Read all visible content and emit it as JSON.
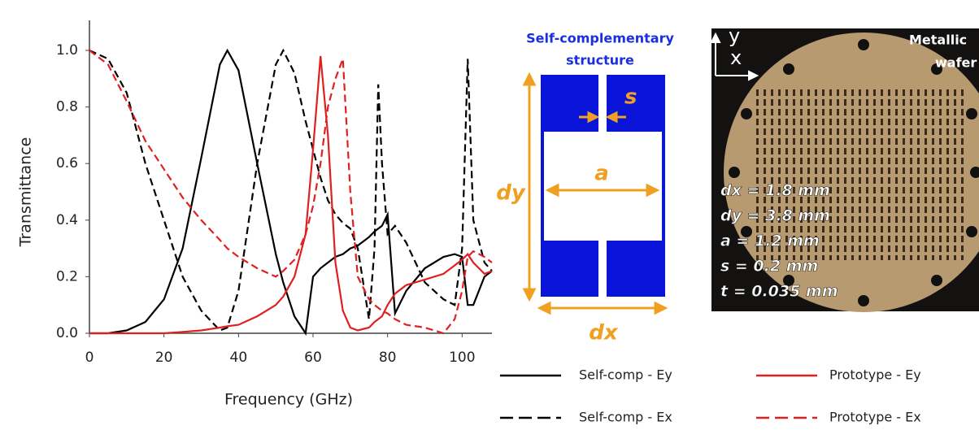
{
  "chart_data": {
    "type": "line",
    "xlabel": "Frequency (GHz)",
    "ylabel": "Transmittance",
    "x": [
      0,
      5,
      10,
      15,
      20,
      25,
      30,
      35,
      37,
      40,
      45,
      50,
      52,
      55,
      58,
      60,
      62,
      64,
      66,
      68,
      70,
      72,
      75,
      76.5,
      77.5,
      78.5,
      80,
      82,
      85,
      90,
      95,
      98,
      100,
      101.5,
      103,
      106,
      108
    ],
    "series": [
      {
        "name": "Self-comp - Ey",
        "color": "#000000",
        "dash": false,
        "values": [
          0,
          0,
          0.01,
          0.04,
          0.12,
          0.3,
          0.62,
          0.95,
          1.0,
          0.93,
          0.6,
          0.28,
          0.18,
          0.06,
          0.0,
          0.2,
          0.23,
          0.25,
          0.27,
          0.28,
          0.3,
          0.31,
          0.34,
          0.36,
          0.37,
          0.38,
          0.42,
          0.07,
          0.15,
          0.23,
          0.27,
          0.28,
          0.27,
          0.1,
          0.1,
          0.2,
          0.22
        ]
      },
      {
        "name": "Self-comp - Ex",
        "color": "#000000",
        "dash": true,
        "values": [
          1.0,
          0.97,
          0.85,
          0.6,
          0.4,
          0.2,
          0.08,
          0.01,
          0.02,
          0.15,
          0.6,
          0.95,
          1.0,
          0.92,
          0.75,
          0.65,
          0.55,
          0.47,
          0.42,
          0.39,
          0.37,
          0.3,
          0.05,
          0.3,
          0.88,
          0.6,
          0.35,
          0.38,
          0.32,
          0.18,
          0.12,
          0.1,
          0.3,
          0.97,
          0.4,
          0.25,
          0.22
        ]
      },
      {
        "name": "Prototype - Ey",
        "color": "#e02020",
        "dash": false,
        "values": [
          0,
          0,
          0,
          0,
          0,
          0.005,
          0.01,
          0.02,
          0.025,
          0.03,
          0.06,
          0.1,
          0.13,
          0.2,
          0.35,
          0.65,
          0.98,
          0.7,
          0.25,
          0.08,
          0.02,
          0.01,
          0.02,
          0.04,
          0.05,
          0.06,
          0.1,
          0.14,
          0.17,
          0.19,
          0.21,
          0.24,
          0.26,
          0.28,
          0.25,
          0.21,
          0.22
        ]
      },
      {
        "name": "Prototype - Ex",
        "color": "#e02020",
        "dash": true,
        "values": [
          1.0,
          0.95,
          0.82,
          0.68,
          0.58,
          0.48,
          0.4,
          0.33,
          0.3,
          0.27,
          0.23,
          0.2,
          0.22,
          0.26,
          0.35,
          0.45,
          0.6,
          0.8,
          0.9,
          0.97,
          0.5,
          0.2,
          0.12,
          0.1,
          0.09,
          0.08,
          0.07,
          0.05,
          0.03,
          0.02,
          0.0,
          0.05,
          0.15,
          0.27,
          0.29,
          0.27,
          0.25
        ]
      }
    ],
    "xlim": [
      0,
      108
    ],
    "xticks": [
      0,
      20,
      40,
      60,
      80,
      100
    ],
    "ylim": [
      0,
      1.0
    ],
    "yticks": [
      {
        "value": 0,
        "label": "0.0"
      },
      0.2,
      0.4,
      0.6,
      0.8,
      {
        "value": 1,
        "label": "1.0"
      }
    ]
  },
  "diagram": {
    "title_lines": [
      "Self-complementary",
      "structure"
    ],
    "s": "s",
    "a": "a",
    "dy": "dy",
    "dx": "dx"
  },
  "photo": {
    "y_axis": "y",
    "x_axis": "x",
    "label_lines": [
      "Metallic",
      "wafer"
    ],
    "parameters": [
      "dx = 1.8 mm",
      "dy = 3.8 mm",
      "a = 1.2 mm",
      "s = 0.2 mm",
      "t = 0.035 mm"
    ]
  }
}
